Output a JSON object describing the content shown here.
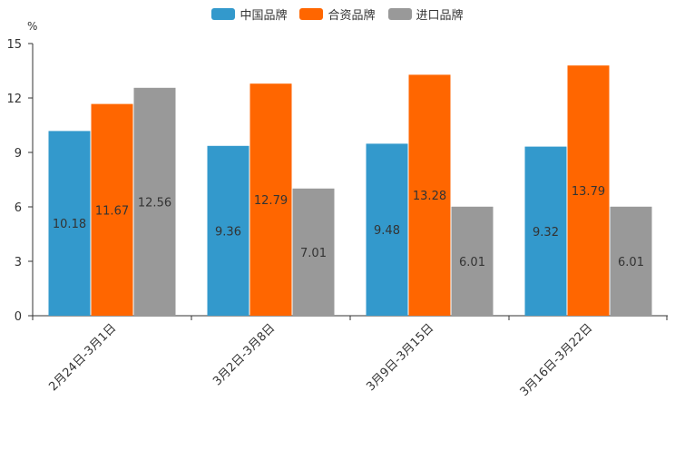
{
  "chart_data": {
    "type": "bar",
    "title": "",
    "unit_label": "%",
    "xlabel": "",
    "ylabel": "%",
    "ylim": [
      0,
      15
    ],
    "yticks": [
      0,
      3,
      6,
      9,
      12,
      15
    ],
    "legend_position": "top-center",
    "categories": [
      "2月24日-3月1日",
      "3月2日-3月8日",
      "3月9日-3月15日",
      "3月16日-3月22日"
    ],
    "series": [
      {
        "name": "中国品牌",
        "color": "#3399cc",
        "values": [
          10.18,
          9.36,
          9.48,
          9.32
        ],
        "labels": [
          "10.18",
          "9.36",
          "9.48",
          "9.32"
        ]
      },
      {
        "name": "合资品牌",
        "color": "#ff6600",
        "values": [
          11.67,
          12.79,
          13.28,
          13.79
        ],
        "labels": [
          "11.67",
          "12.79",
          "13.28",
          "13.79"
        ]
      },
      {
        "name": "进口品牌",
        "color": "#999999",
        "values": [
          12.56,
          7.01,
          6.01,
          6.01
        ],
        "labels": [
          "12.56",
          "7.01",
          "6.01",
          "6.01"
        ]
      }
    ]
  }
}
